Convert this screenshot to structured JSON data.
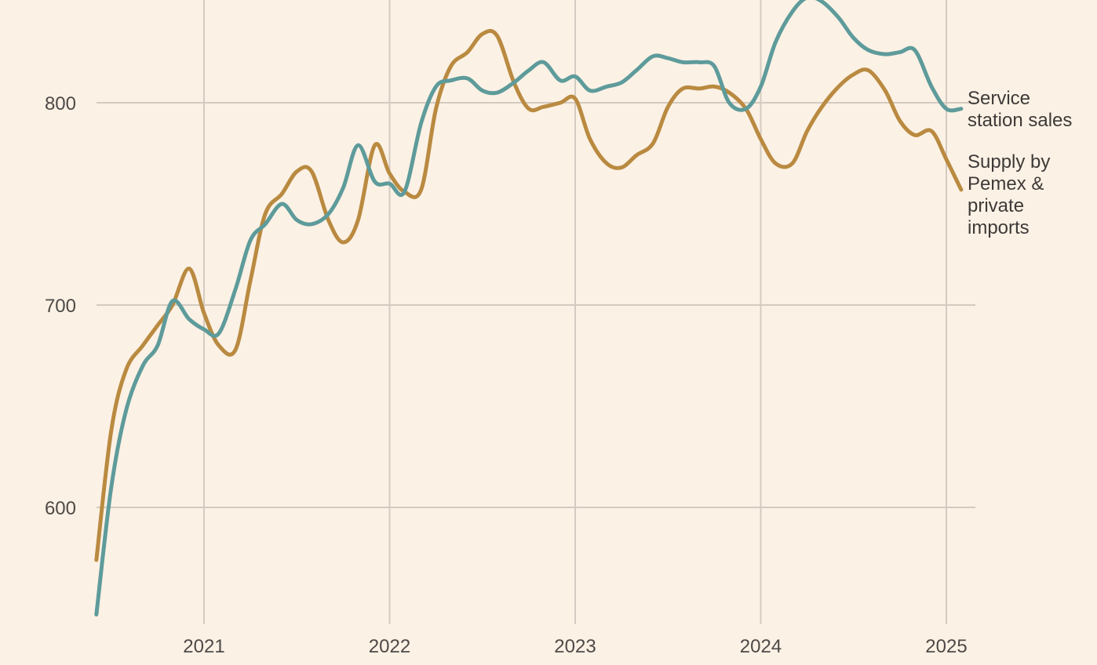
{
  "chart_data": {
    "type": "line",
    "title": "",
    "xlabel": "",
    "ylabel": "",
    "x_ticks": [
      {
        "label": "2021",
        "value": 2021
      },
      {
        "label": "2022",
        "value": 2022
      },
      {
        "label": "2023",
        "value": 2023
      },
      {
        "label": "2024",
        "value": 2024
      },
      {
        "label": "2025",
        "value": 2025
      }
    ],
    "y_ticks": [
      {
        "label": "600",
        "value": 600
      },
      {
        "label": "700",
        "value": 700
      },
      {
        "label": "800",
        "value": 800
      }
    ],
    "xlim": [
      2020.42,
      2025.08
    ],
    "ylim": [
      550,
      850
    ],
    "grid": true,
    "legend": "direct labels at line ends (right)",
    "series": [
      {
        "name": "Supply by Pemex & private imports",
        "label_lines": [
          "Supply by",
          "Pemex &",
          "private",
          "imports"
        ],
        "color": "#b98a40",
        "x": [
          2020.42,
          2020.5,
          2020.58,
          2020.67,
          2020.75,
          2020.83,
          2020.92,
          2021.0,
          2021.08,
          2021.17,
          2021.25,
          2021.33,
          2021.42,
          2021.5,
          2021.58,
          2021.67,
          2021.75,
          2021.83,
          2021.92,
          2022.0,
          2022.08,
          2022.17,
          2022.25,
          2022.33,
          2022.42,
          2022.5,
          2022.58,
          2022.67,
          2022.75,
          2022.83,
          2022.92,
          2023.0,
          2023.08,
          2023.17,
          2023.25,
          2023.33,
          2023.42,
          2023.5,
          2023.58,
          2023.67,
          2023.75,
          2023.83,
          2023.92,
          2024.0,
          2024.08,
          2024.17,
          2024.25,
          2024.33,
          2024.42,
          2024.5,
          2024.58,
          2024.67,
          2024.75,
          2024.83,
          2024.92,
          2025.0,
          2025.08
        ],
        "y": [
          574,
          638,
          668,
          680,
          690,
          700,
          718,
          696,
          680,
          678,
          712,
          745,
          755,
          766,
          766,
          742,
          731,
          742,
          779,
          765,
          756,
          757,
          797,
          818,
          825,
          834,
          833,
          810,
          797,
          798,
          800,
          802,
          782,
          770,
          768,
          774,
          780,
          798,
          807,
          807,
          808,
          805,
          797,
          782,
          770,
          770,
          786,
          798,
          808,
          814,
          816,
          806,
          791,
          784,
          786,
          772,
          757
        ]
      },
      {
        "name": "Service station sales",
        "label_lines": [
          "Service",
          "station sales"
        ],
        "color": "#5e9b9b",
        "x": [
          2020.42,
          2020.5,
          2020.58,
          2020.67,
          2020.75,
          2020.83,
          2020.92,
          2021.0,
          2021.08,
          2021.17,
          2021.25,
          2021.33,
          2021.42,
          2021.5,
          2021.58,
          2021.67,
          2021.75,
          2021.83,
          2021.92,
          2022.0,
          2022.08,
          2022.17,
          2022.25,
          2022.33,
          2022.42,
          2022.5,
          2022.58,
          2022.67,
          2022.75,
          2022.83,
          2022.92,
          2023.0,
          2023.08,
          2023.17,
          2023.25,
          2023.33,
          2023.42,
          2023.5,
          2023.58,
          2023.67,
          2023.75,
          2023.83,
          2023.92,
          2024.0,
          2024.08,
          2024.17,
          2024.25,
          2024.33,
          2024.42,
          2024.5,
          2024.58,
          2024.67,
          2024.75,
          2024.83,
          2024.92,
          2025.0,
          2025.08
        ],
        "y": [
          547,
          610,
          648,
          670,
          680,
          702,
          693,
          688,
          686,
          708,
          732,
          740,
          750,
          742,
          740,
          745,
          758,
          779,
          761,
          760,
          756,
          790,
          808,
          811,
          812,
          806,
          805,
          810,
          816,
          820,
          811,
          813,
          806,
          808,
          810,
          816,
          823,
          822,
          820,
          820,
          818,
          800,
          797,
          808,
          830,
          845,
          852,
          850,
          842,
          832,
          826,
          824,
          825,
          826,
          808,
          797,
          797
        ]
      }
    ]
  }
}
